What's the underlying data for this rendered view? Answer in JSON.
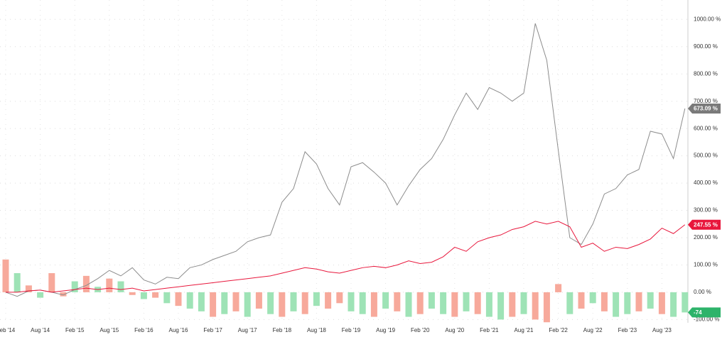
{
  "chart_data": {
    "type": "combo",
    "categories": [
      "Feb '14",
      null,
      null,
      "Aug '14",
      null,
      null,
      "Feb '15",
      null,
      null,
      "Aug '15",
      null,
      null,
      "Feb '16",
      null,
      null,
      "Aug '16",
      null,
      null,
      "Feb '17",
      null,
      null,
      "Aug '17",
      null,
      null,
      "Feb '18",
      null,
      null,
      "Aug '18",
      null,
      null,
      "Feb '19",
      null,
      null,
      "Aug '19",
      null,
      null,
      "Feb '20",
      null,
      null,
      "Aug '20",
      null,
      null,
      "Feb '21",
      null,
      null,
      "Aug '21",
      null,
      null,
      "Feb '22",
      null,
      null,
      "Aug '22",
      null,
      null,
      "Feb '23",
      null,
      null,
      "Aug '23",
      null,
      null
    ],
    "series": [
      {
        "type": "bar",
        "colors": [
          "#f7a99b",
          "#9ee3b6",
          "#f7a99b",
          "#9ee3b6",
          "#f7a99b",
          "#f7a99b",
          "#9ee3b6",
          "#f7a99b",
          "#9ee3b6",
          "#f7a99b",
          "#9ee3b6",
          "#f7a99b",
          "#9ee3b6",
          "#f7a99b",
          "#9ee3b6",
          "#f7a99b",
          "#9ee3b6",
          "#9ee3b6",
          "#f7a99b",
          "#9ee3b6",
          "#f7a99b",
          "#9ee3b6",
          "#f7a99b",
          "#9ee3b6",
          "#f7a99b",
          "#9ee3b6",
          "#f7a99b",
          "#9ee3b6",
          "#f7a99b",
          "#f7a99b",
          "#9ee3b6",
          "#9ee3b6",
          "#f7a99b",
          "#9ee3b6",
          "#f7a99b",
          "#9ee3b6",
          "#f7a99b",
          "#9ee3b6",
          "#9ee3b6",
          "#f7a99b",
          "#9ee3b6",
          "#f7a99b",
          "#9ee3b6",
          "#9ee3b6",
          "#f7a99b",
          "#9ee3b6",
          "#f7a99b",
          "#f7a99b",
          "#f7a99b",
          "#9ee3b6",
          "#f7a99b",
          "#9ee3b6",
          "#f7a99b",
          "#9ee3b6",
          "#9ee3b6",
          "#f7a99b",
          "#9ee3b6",
          "#f7a99b",
          "#9ee3b6",
          "#9ee3b6"
        ],
        "values": [
          120,
          70,
          25,
          -20,
          70,
          -15,
          40,
          60,
          20,
          50,
          40,
          -10,
          -25,
          -20,
          -40,
          -50,
          -60,
          -70,
          -90,
          -80,
          -70,
          -90,
          -60,
          -80,
          -90,
          -70,
          -80,
          -50,
          -60,
          -40,
          -70,
          -80,
          -90,
          -60,
          -70,
          -90,
          -80,
          -60,
          -80,
          -90,
          -70,
          -80,
          -90,
          -100,
          -90,
          -80,
          -100,
          -110,
          30,
          -80,
          -60,
          -40,
          -70,
          -90,
          -80,
          -70,
          -60,
          -80,
          -90,
          -74
        ],
        "value_labels": [
          null,
          null,
          null,
          null,
          null,
          null,
          null,
          null,
          null,
          null,
          null,
          null,
          null,
          null,
          null,
          null,
          null,
          null,
          null,
          null,
          null,
          null,
          null,
          null,
          null,
          null,
          null,
          null,
          null,
          null,
          null,
          null,
          null,
          null,
          null,
          null,
          null,
          null,
          null,
          null,
          null,
          null,
          null,
          null,
          null,
          null,
          null,
          null,
          null,
          null,
          null,
          null,
          null,
          null,
          null,
          null,
          null,
          null,
          null,
          "-74"
        ],
        "flag_color": "#2db36a"
      },
      {
        "type": "line",
        "color": "#8c8c8c",
        "values": [
          0,
          -15,
          5,
          8,
          0,
          -10,
          10,
          25,
          50,
          80,
          60,
          90,
          45,
          30,
          55,
          50,
          90,
          100,
          120,
          135,
          150,
          185,
          200,
          210,
          330,
          380,
          515,
          470,
          380,
          320,
          460,
          475,
          440,
          400,
          320,
          390,
          450,
          490,
          560,
          650,
          730,
          670,
          750,
          730,
          700,
          730,
          985,
          850,
          520,
          200,
          175,
          250,
          360,
          380,
          430,
          450,
          590,
          580,
          490,
          673.09
        ],
        "value_labels": [
          null,
          null,
          null,
          null,
          null,
          null,
          null,
          null,
          null,
          null,
          null,
          null,
          null,
          null,
          null,
          null,
          null,
          null,
          null,
          null,
          null,
          null,
          null,
          null,
          null,
          null,
          null,
          null,
          null,
          null,
          null,
          null,
          null,
          null,
          null,
          null,
          null,
          null,
          null,
          null,
          null,
          null,
          null,
          null,
          null,
          null,
          null,
          null,
          null,
          null,
          null,
          null,
          null,
          null,
          null,
          null,
          null,
          null,
          null,
          "673.09 %"
        ],
        "flag_color": "#7a7a7a"
      },
      {
        "type": "line",
        "color": "#e8173c",
        "values": [
          0,
          0,
          5,
          8,
          0,
          5,
          10,
          15,
          10,
          15,
          10,
          15,
          5,
          10,
          15,
          20,
          25,
          30,
          35,
          40,
          45,
          50,
          55,
          60,
          70,
          80,
          90,
          85,
          75,
          70,
          80,
          90,
          95,
          90,
          100,
          115,
          105,
          110,
          130,
          165,
          150,
          185,
          200,
          210,
          230,
          240,
          260,
          250,
          260,
          240,
          165,
          180,
          150,
          165,
          160,
          175,
          195,
          235,
          215,
          247.55
        ],
        "value_labels": [
          null,
          null,
          null,
          null,
          null,
          null,
          null,
          null,
          null,
          null,
          null,
          null,
          null,
          null,
          null,
          null,
          null,
          null,
          null,
          null,
          null,
          null,
          null,
          null,
          null,
          null,
          null,
          null,
          null,
          null,
          null,
          null,
          null,
          null,
          null,
          null,
          null,
          null,
          null,
          null,
          null,
          null,
          null,
          null,
          null,
          null,
          null,
          null,
          null,
          null,
          null,
          null,
          null,
          null,
          null,
          null,
          null,
          null,
          null,
          "247.55 %"
        ],
        "flag_color": "#e8173c"
      }
    ],
    "ylim": [
      -112,
      1071
    ],
    "yticks": [
      {
        "value": -100,
        "label": "-100.00 %"
      },
      {
        "value": 0,
        "label": "0.00 %"
      },
      {
        "value": 100,
        "label": "100.00 %"
      },
      {
        "value": 200,
        "label": "200.00 %"
      },
      {
        "value": 300,
        "label": "300.00 %"
      },
      {
        "value": 400,
        "label": "400.00 %"
      },
      {
        "value": 500,
        "label": "500.00 %"
      },
      {
        "value": 600,
        "label": "600.00 %"
      },
      {
        "value": 700,
        "label": "700.00 %"
      },
      {
        "value": 800,
        "label": "800.00 %"
      },
      {
        "value": 900,
        "label": "900.00 %"
      },
      {
        "value": 1000,
        "label": "1000.00 %"
      }
    ],
    "grid": true
  }
}
